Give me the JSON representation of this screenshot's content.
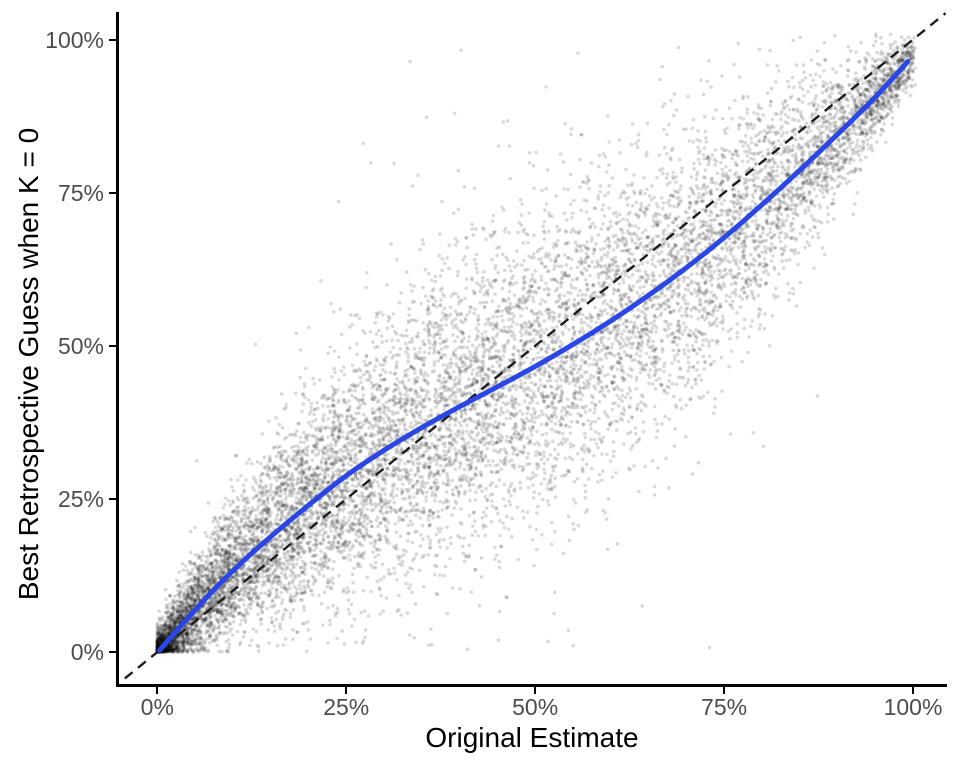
{
  "chart_data": {
    "type": "scatter",
    "title": "",
    "xlabel": "Original Estimate",
    "ylabel": "Best Retrospective Guess when K = 0",
    "x_range": [
      -5.2,
      104.5
    ],
    "y_range": [
      -5.2,
      104.5
    ],
    "x_ticks": [
      0,
      25,
      50,
      75,
      100
    ],
    "y_ticks": [
      0,
      25,
      50,
      75,
      100
    ],
    "x_tick_labels": [
      "0%",
      "25%",
      "50%",
      "75%",
      "100%"
    ],
    "y_tick_labels": [
      "0%",
      "25%",
      "50%",
      "75%",
      "100%"
    ],
    "grid": false,
    "legend": "none",
    "identity_line": {
      "label": "y-equals-x-reference",
      "x": [
        -4.3,
        104.3
      ],
      "y": [
        -4.3,
        104.3
      ],
      "color": "#1c1c1c",
      "width": 2.4,
      "dash": [
        10,
        7
      ]
    },
    "smooth_line": {
      "label": "smoothed-mean-retrospective-guess",
      "color": "#2a46e6",
      "width": 5,
      "x": [
        0.3,
        5,
        10,
        15,
        20,
        25,
        30,
        35,
        40,
        45,
        50,
        55,
        60,
        65,
        70,
        75,
        80,
        85,
        90,
        95,
        99.3
      ],
      "y": [
        0.3,
        7.0,
        13.4,
        18.9,
        24.0,
        28.9,
        33.0,
        36.7,
        40.1,
        43.3,
        46.6,
        50.2,
        54.0,
        58.2,
        62.7,
        67.6,
        73.0,
        78.6,
        84.5,
        90.5,
        96.4
      ]
    },
    "points": {
      "label": "estimate-pairs",
      "color": "#000000",
      "opacity": 0.15,
      "radius": 1.8,
      "count": 12000,
      "seed": 12345,
      "x_power": 1.4,
      "noise_sd_base": 1.5,
      "noise_sd_peak": 11,
      "noise_sd_shape": 0.85,
      "outlier_fraction": 0.025,
      "outlier_scale": 2.4
    }
  },
  "style": {
    "background": "#ffffff",
    "axis_color": "#000000",
    "tick_label_color": "#4d4d4d",
    "axis_title_color": "#000000"
  }
}
